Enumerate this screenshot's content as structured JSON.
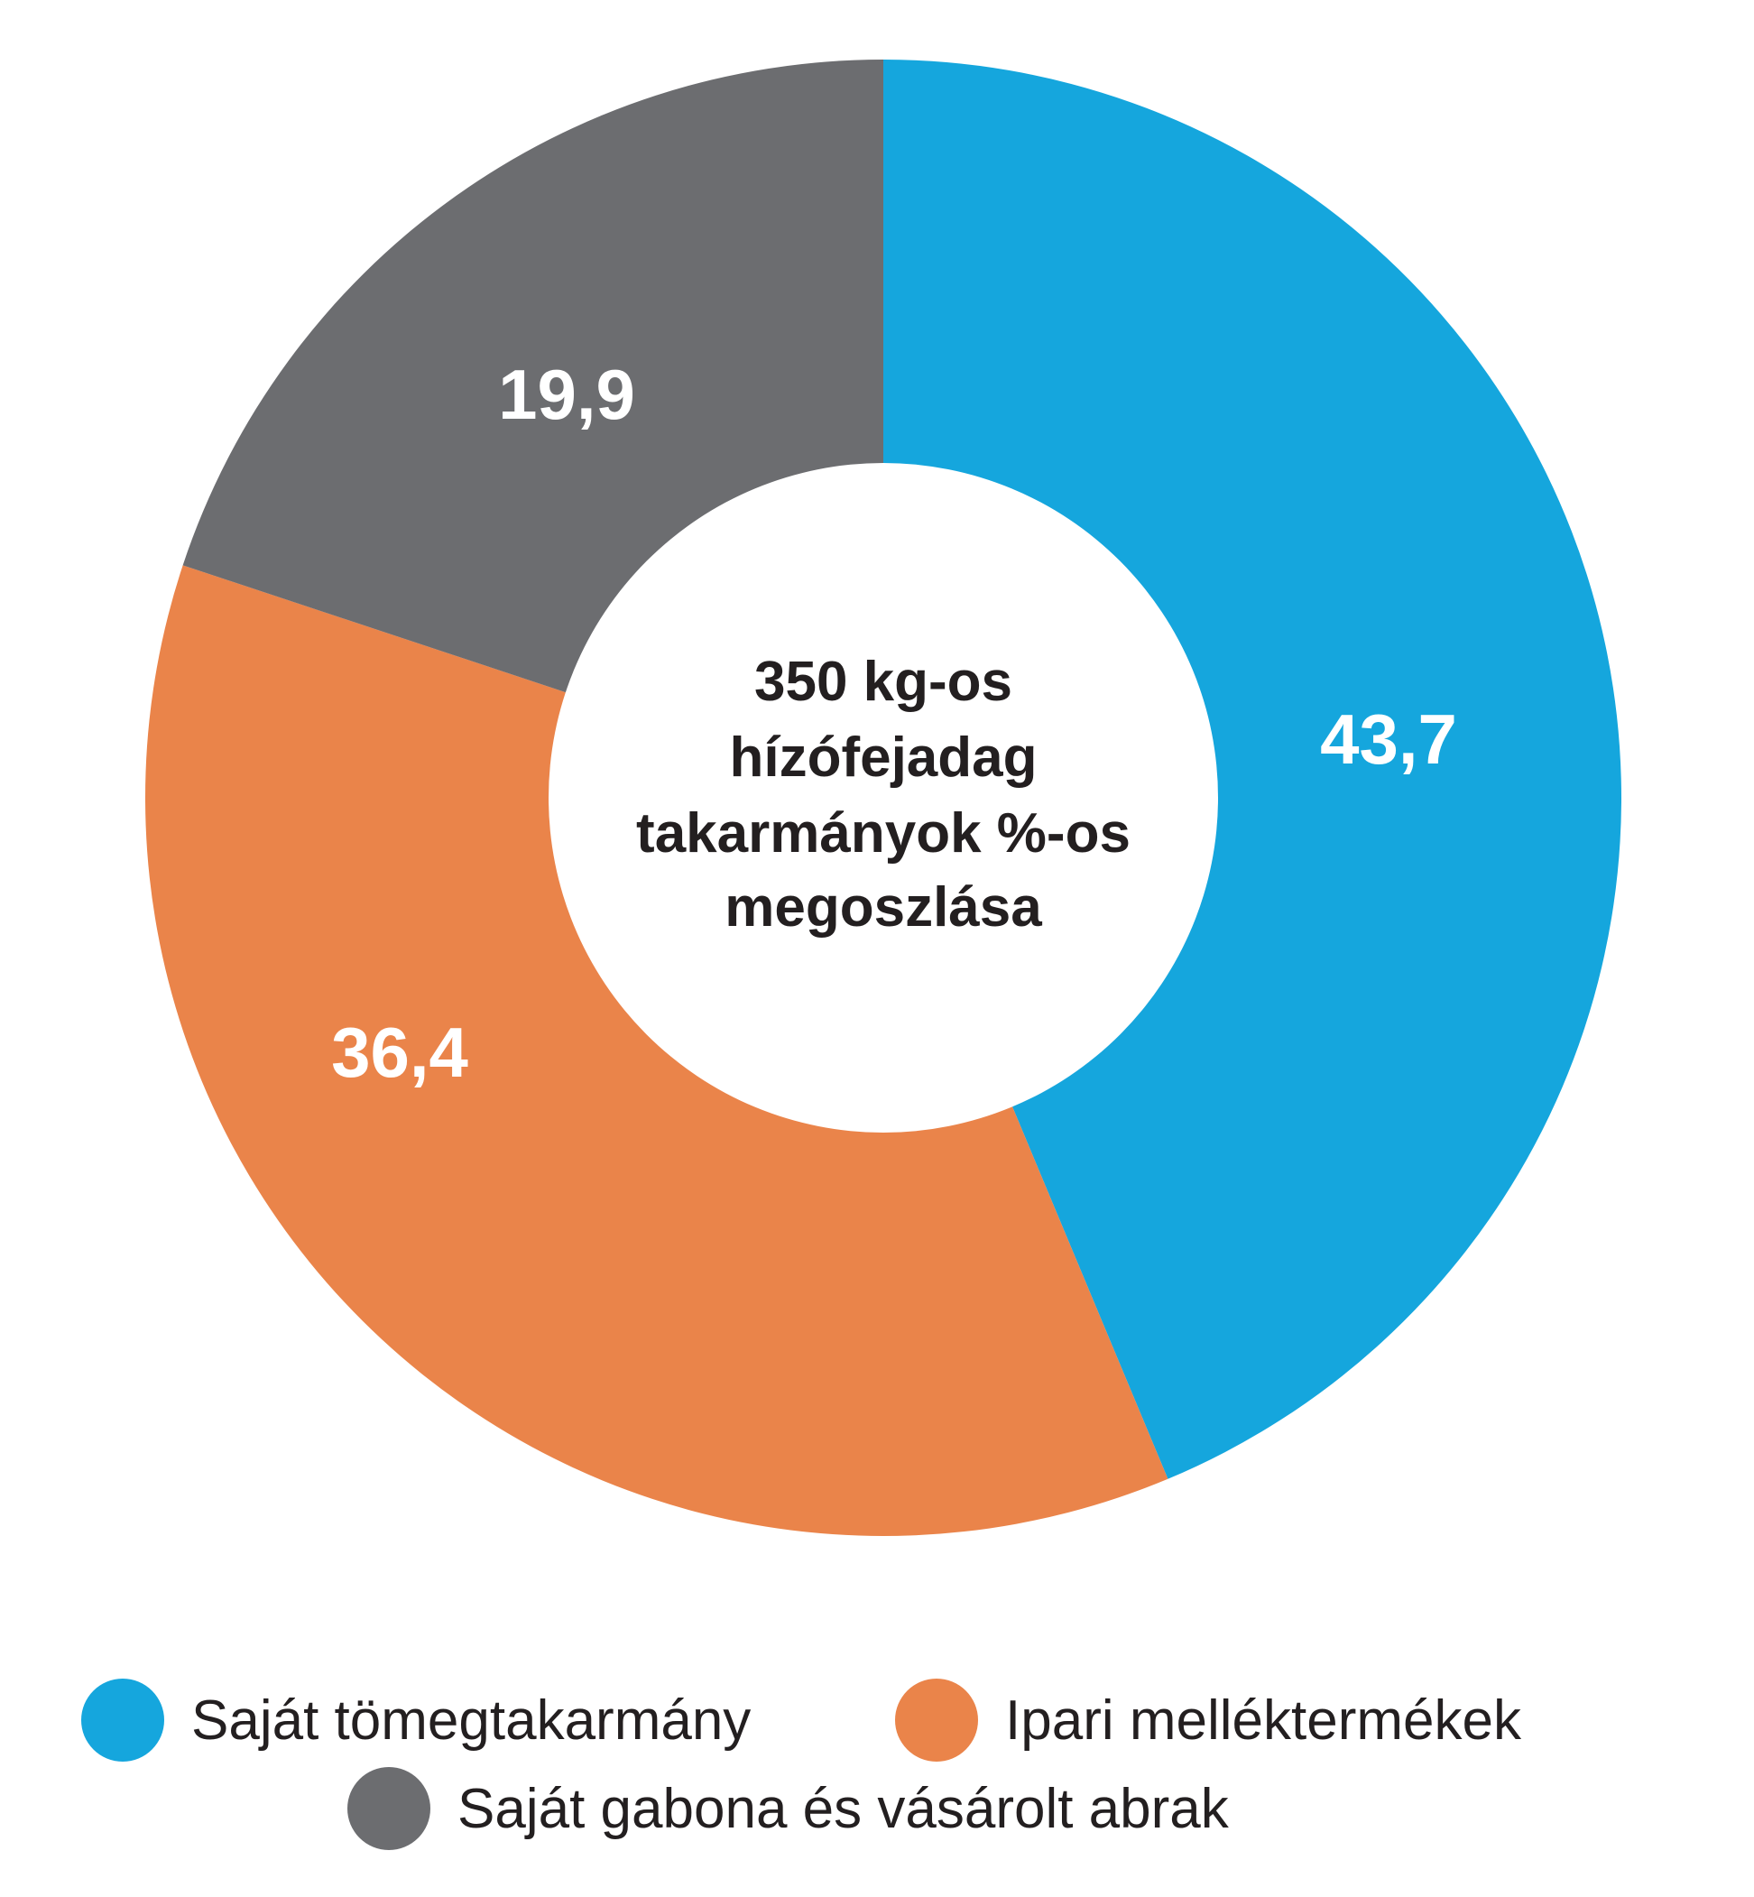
{
  "chart_data": {
    "type": "pie",
    "variant": "donut",
    "title": "350 kg-os hízófejadag takarmányok %-os megoszlása",
    "title_lines": [
      "350 kg-os",
      "hízófejadag",
      "takarmányok %-os",
      "megoszlása"
    ],
    "slices": [
      {
        "name": "Saját tömegtakarmány",
        "value": 43.7,
        "label": "43,7",
        "color": "#15a6dd"
      },
      {
        "name": "Ipari melléktermékek",
        "value": 36.4,
        "label": "36,4",
        "color": "#ea844a"
      },
      {
        "name": "Saját gabona és vásárolt abrak",
        "value": 19.9,
        "label": "19,9",
        "color": "#6c6d70"
      }
    ],
    "legend_placement": "bottom",
    "start_angle": "top, clockwise"
  }
}
